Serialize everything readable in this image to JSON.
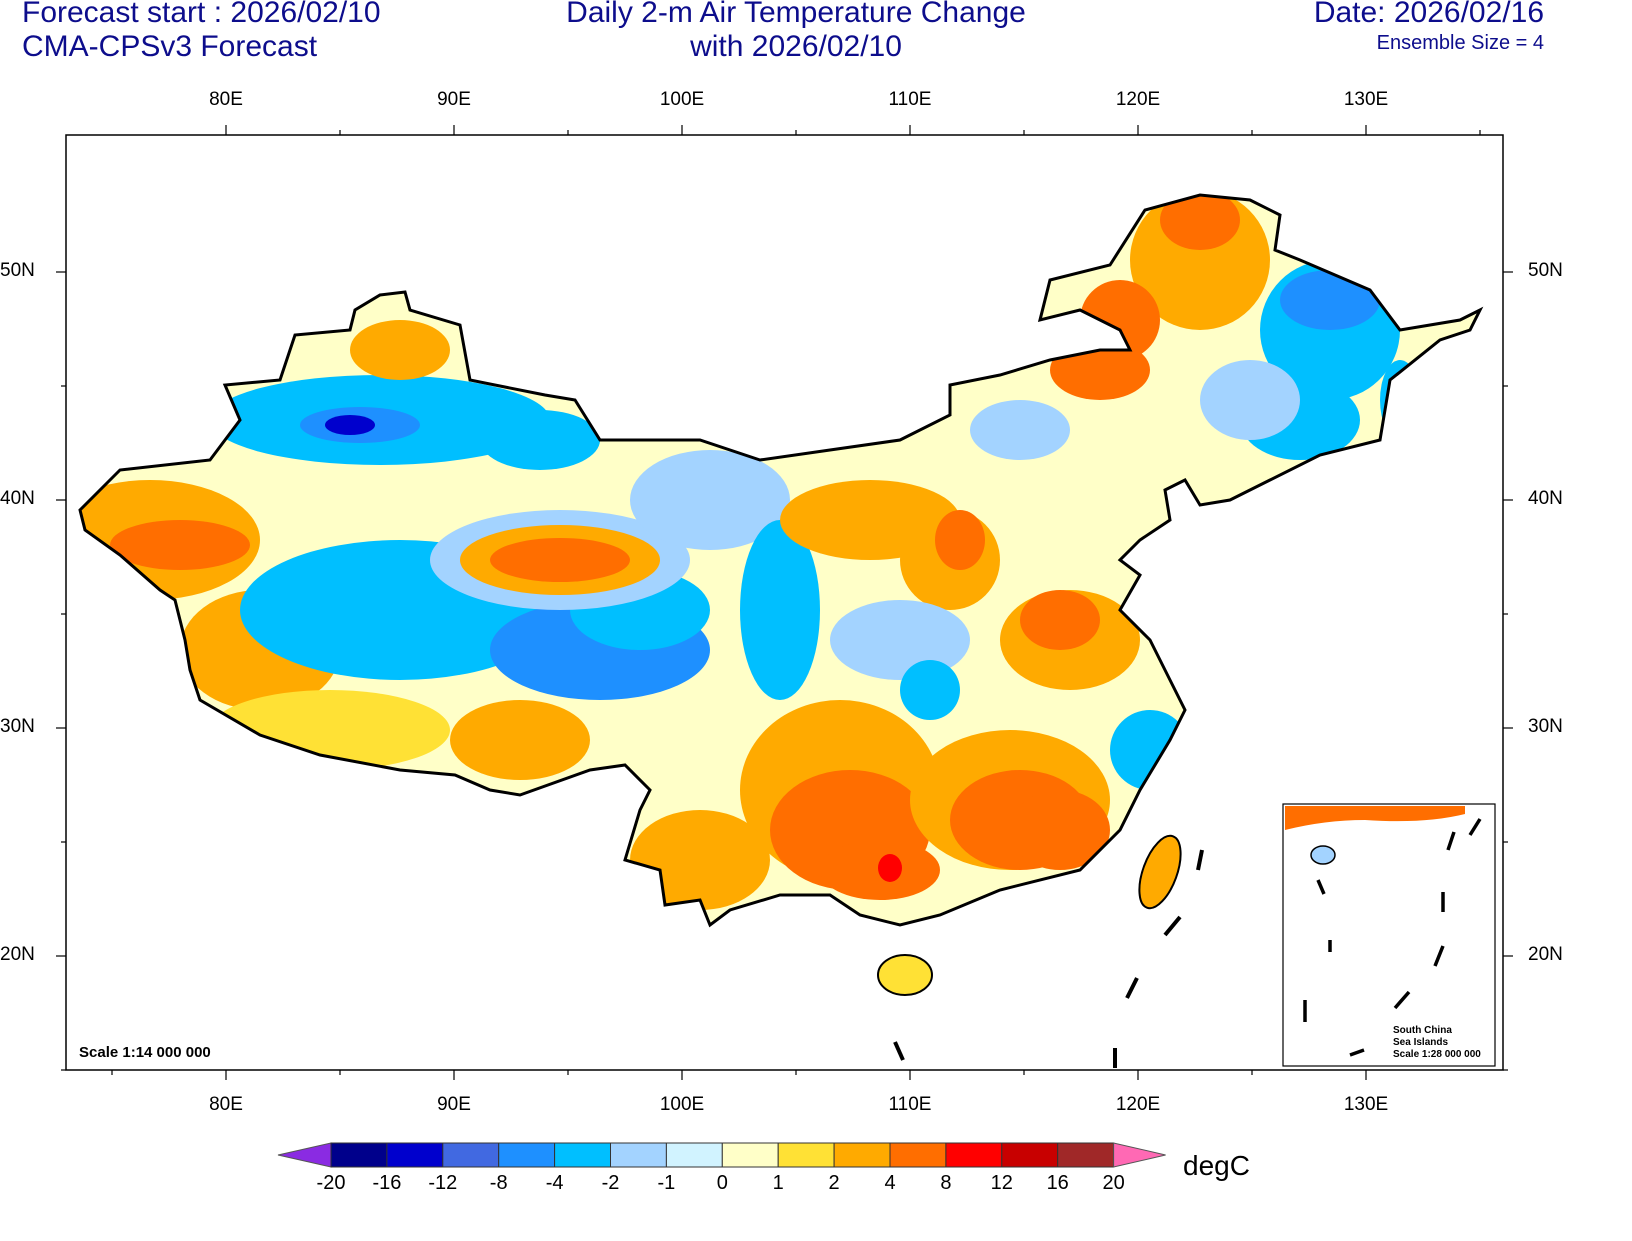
{
  "header": {
    "forecast_start": "Forecast start : 2026/02/10",
    "model": "CMA-CPSv3 Forecast",
    "title_line1": "Daily 2-m Air Temperature Change",
    "title_line2": "with 2026/02/10",
    "date": "Date: 2026/02/16",
    "ensemble": "Ensemble Size = 4"
  },
  "axes": {
    "lon_labels": [
      "80E",
      "90E",
      "100E",
      "110E",
      "120E",
      "130E"
    ],
    "lat_labels": [
      "50N",
      "40N",
      "30N",
      "20N"
    ]
  },
  "scale": "Scale 1:14 000 000",
  "inset": {
    "line1": "South China",
    "line2": "Sea Islands",
    "line3": "Scale 1:28 000 000"
  },
  "colorbar": {
    "unit": "degC",
    "labels": [
      "-20",
      "-16",
      "-12",
      "-8",
      "-4",
      "-2",
      "-1",
      "0",
      "1",
      "2",
      "4",
      "8",
      "12",
      "16",
      "20"
    ],
    "colors": [
      "#00008B",
      "#0000CD",
      "#4169E1",
      "#1E90FF",
      "#00BFFF",
      "#A3D3FF",
      "#D1F3FF",
      "#FFFFC8",
      "#FFE135",
      "#FFAA00",
      "#FF6E00",
      "#FF0000",
      "#C80000",
      "#A02828"
    ],
    "low_color": "#8A2BE2",
    "high_color": "#FF69B4"
  }
}
